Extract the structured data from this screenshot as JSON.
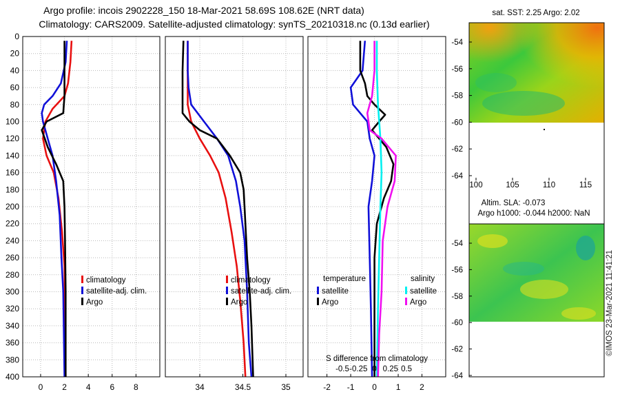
{
  "header": {
    "line1": "Argo profile: incois 2902228_150 18-Mar-2021 58.69S 108.62E (NRT data)",
    "line2": "Climatology: CARS2009. Satellite-adjusted climatology: synTS_20210318.nc (0.13d earlier)"
  },
  "footer": {
    "credit": "©IMOS 23-Mar-2021 11:41:21"
  },
  "colors": {
    "climatology": "#e81010",
    "satellite": "#1010d8",
    "argo": "#000000",
    "sat_salinity": "#00f0f0",
    "salinity": "#f010f0",
    "grid": "#b8b8b8"
  },
  "chart_data": [
    {
      "id": "temperature-profile",
      "type": "line",
      "xlim": [
        -1.5,
        10
      ],
      "ylim": [
        400,
        0
      ],
      "xticks": [
        0,
        2,
        4,
        6,
        8
      ],
      "yticks": [
        0,
        20,
        40,
        60,
        80,
        100,
        120,
        140,
        160,
        180,
        200,
        220,
        240,
        260,
        280,
        300,
        320,
        340,
        360,
        380,
        400
      ],
      "legend": [
        "climatology",
        "satellite-adj. clim.",
        "Argo"
      ],
      "series": [
        {
          "name": "climatology",
          "color_key": "climatology",
          "points": [
            [
              2.6,
              5
            ],
            [
              2.5,
              30
            ],
            [
              2.3,
              55
            ],
            [
              2,
              70
            ],
            [
              1,
              85
            ],
            [
              0.4,
              100
            ],
            [
              0.2,
              120
            ],
            [
              0.5,
              140
            ],
            [
              1.1,
              160
            ],
            [
              1.5,
              190
            ],
            [
              1.8,
              230
            ],
            [
              2.0,
              270
            ],
            [
              2.05,
              320
            ],
            [
              2.1,
              400
            ]
          ]
        },
        {
          "name": "satellite-adj. clim.",
          "color_key": "satellite",
          "points": [
            [
              2.2,
              5
            ],
            [
              2.1,
              30
            ],
            [
              1.7,
              55
            ],
            [
              1,
              70
            ],
            [
              0.3,
              80
            ],
            [
              0.1,
              90
            ],
            [
              0.2,
              100
            ],
            [
              0.6,
              120
            ],
            [
              1,
              140
            ],
            [
              1.3,
              170
            ],
            [
              1.6,
              210
            ],
            [
              1.75,
              260
            ],
            [
              1.9,
              300
            ],
            [
              1.95,
              350
            ],
            [
              2,
              400
            ]
          ]
        },
        {
          "name": "Argo",
          "color_key": "argo",
          "points": [
            [
              2,
              5
            ],
            [
              2,
              40
            ],
            [
              2,
              70
            ],
            [
              1.9,
              90
            ],
            [
              0.5,
              100
            ],
            [
              0.1,
              110
            ],
            [
              0.6,
              130
            ],
            [
              1.3,
              150
            ],
            [
              1.9,
              170
            ],
            [
              2,
              200
            ],
            [
              2.05,
              240
            ],
            [
              2.1,
              300
            ],
            [
              2.1,
              400
            ]
          ]
        }
      ]
    },
    {
      "id": "salinity-profile",
      "type": "line",
      "xlim": [
        33.6,
        35.2
      ],
      "ylim": [
        400,
        0
      ],
      "xticks": [
        34,
        34.5,
        35
      ],
      "xtick_labels": [
        "34",
        "34.5",
        "35"
      ],
      "legend": [
        "climatology",
        "satellite-adj. clim.",
        "Argo"
      ],
      "series": [
        {
          "name": "climatology",
          "color_key": "climatology",
          "points": [
            [
              33.86,
              5
            ],
            [
              33.86,
              40
            ],
            [
              33.86,
              80
            ],
            [
              33.9,
              100
            ],
            [
              34,
              120
            ],
            [
              34.12,
              140
            ],
            [
              34.22,
              160
            ],
            [
              34.3,
              190
            ],
            [
              34.37,
              230
            ],
            [
              34.43,
              270
            ],
            [
              34.47,
              310
            ],
            [
              34.51,
              360
            ],
            [
              34.53,
              400
            ]
          ]
        },
        {
          "name": "satellite-adj. clim.",
          "color_key": "satellite",
          "points": [
            [
              33.86,
              5
            ],
            [
              33.86,
              40
            ],
            [
              33.87,
              60
            ],
            [
              33.9,
              80
            ],
            [
              34.05,
              100
            ],
            [
              34.2,
              120
            ],
            [
              34.33,
              140
            ],
            [
              34.42,
              170
            ],
            [
              34.47,
              200
            ],
            [
              34.52,
              240
            ],
            [
              34.55,
              300
            ],
            [
              34.57,
              360
            ],
            [
              34.6,
              400
            ]
          ]
        },
        {
          "name": "Argo",
          "color_key": "argo",
          "points": [
            [
              33.81,
              5
            ],
            [
              33.8,
              40
            ],
            [
              33.8,
              70
            ],
            [
              33.8,
              90
            ],
            [
              33.88,
              100
            ],
            [
              34,
              110
            ],
            [
              34.2,
              120
            ],
            [
              34.35,
              140
            ],
            [
              34.47,
              160
            ],
            [
              34.51,
              180
            ],
            [
              34.53,
              220
            ],
            [
              34.55,
              260
            ],
            [
              34.58,
              300
            ],
            [
              34.6,
              340
            ],
            [
              34.62,
              400
            ]
          ]
        }
      ]
    },
    {
      "id": "difference-profile",
      "type": "line",
      "xlim": [
        -2.8,
        3.0
      ],
      "ylim": [
        400,
        0
      ],
      "xticks": [
        -2,
        -1,
        0,
        1,
        2
      ],
      "secondary_xticks": [
        -0.5,
        -0.25,
        0,
        0.25,
        0.5
      ],
      "secondary_xlabel": "S difference from climatology",
      "legend_temperature": {
        "title": "temperature",
        "items": [
          "satellite",
          "Argo"
        ]
      },
      "legend_salinity": {
        "title": "salinity",
        "items": [
          "satellite",
          "Argo"
        ]
      },
      "series": [
        {
          "name": "temperature satellite",
          "color_key": "satellite",
          "points": [
            [
              -0.4,
              5
            ],
            [
              -0.5,
              40
            ],
            [
              -1.0,
              60
            ],
            [
              -0.9,
              80
            ],
            [
              -0.3,
              100
            ],
            [
              -0.2,
              120
            ],
            [
              0,
              140
            ],
            [
              -0.1,
              170
            ],
            [
              -0.25,
              200
            ],
            [
              -0.2,
              260
            ],
            [
              -0.15,
              320
            ],
            [
              -0.1,
              400
            ]
          ]
        },
        {
          "name": "temperature Argo",
          "color_key": "argo",
          "points": [
            [
              -0.6,
              5
            ],
            [
              -0.6,
              40
            ],
            [
              -0.4,
              55
            ],
            [
              -0.3,
              70
            ],
            [
              0,
              80
            ],
            [
              0.45,
              92
            ],
            [
              0.2,
              100
            ],
            [
              -0.1,
              110
            ],
            [
              0.5,
              130
            ],
            [
              0.8,
              150
            ],
            [
              0.7,
              170
            ],
            [
              0.4,
              190
            ],
            [
              0.1,
              220
            ],
            [
              0,
              260
            ],
            [
              0,
              320
            ],
            [
              0,
              400
            ]
          ]
        },
        {
          "name": "salinity satellite",
          "color_key": "sat_salinity",
          "points": [
            [
              0.1,
              5
            ],
            [
              0.1,
              40
            ],
            [
              0.15,
              80
            ],
            [
              0.25,
              120
            ],
            [
              0.3,
              160
            ],
            [
              0.25,
              200
            ],
            [
              0.2,
              260
            ],
            [
              0.15,
              320
            ],
            [
              0.1,
              400
            ]
          ]
        },
        {
          "name": "salinity Argo",
          "color_key": "salinity",
          "points": [
            [
              0,
              5
            ],
            [
              0,
              40
            ],
            [
              -0.1,
              70
            ],
            [
              -0.3,
              90
            ],
            [
              -0.2,
              110
            ],
            [
              0.3,
              120
            ],
            [
              0.9,
              140
            ],
            [
              0.85,
              170
            ],
            [
              0.55,
              200
            ],
            [
              0.35,
              240
            ],
            [
              0.3,
              300
            ],
            [
              0.2,
              350
            ],
            [
              0.15,
              400
            ]
          ]
        }
      ]
    }
  ],
  "maps": {
    "sst": {
      "title": "sat. SST: 2.25 Argo: 2.02",
      "yticks": [
        "-54",
        "-56",
        "-58",
        "-60",
        "-62",
        "-64"
      ],
      "xticks": [
        "100",
        "105",
        "110",
        "115"
      ]
    },
    "sla": {
      "title_line1": "Altim. SLA: -0.073",
      "title_line2": "Argo h1000: -0.044 h2000: NaN",
      "yticks": [
        "-54",
        "-56",
        "-58",
        "-60",
        "-62",
        "-64"
      ]
    }
  }
}
